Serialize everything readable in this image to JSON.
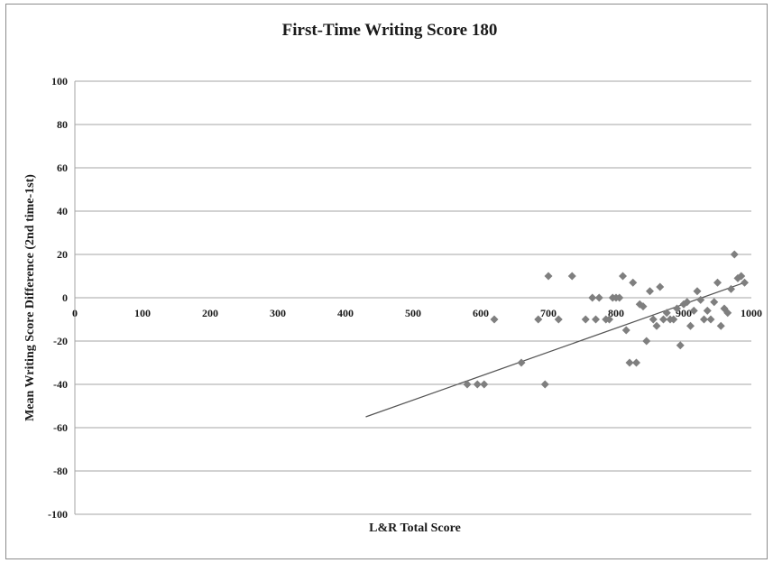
{
  "chart_data": {
    "type": "scatter",
    "title": "First-Time Writing Score 180",
    "xlabel": "L&R Total Score",
    "ylabel": "Mean Writing Score Difference (2nd time-1st)",
    "xlim": [
      0,
      1000
    ],
    "ylim": [
      -100,
      100
    ],
    "xticks": [
      0,
      100,
      200,
      300,
      400,
      500,
      600,
      700,
      800,
      900,
      1000
    ],
    "yticks": [
      -100,
      -80,
      -60,
      -40,
      -20,
      0,
      20,
      40,
      60,
      80,
      100
    ],
    "xtick_labels": [
      "0",
      "100",
      "200",
      "300",
      "400",
      "500",
      "600",
      "700",
      "800",
      "900",
      "1000"
    ],
    "ytick_labels": [
      "-100",
      "-80",
      "-60",
      "-40",
      "-20",
      "0",
      "20",
      "40",
      "60",
      "80",
      "100"
    ],
    "grid": "horizontal",
    "legend": "none",
    "series": [
      {
        "marker": "diamond",
        "color": "#7f7f7f",
        "points": [
          [
            580,
            -40
          ],
          [
            595,
            -40
          ],
          [
            605,
            -40
          ],
          [
            620,
            -10
          ],
          [
            660,
            -30
          ],
          [
            685,
            -10
          ],
          [
            695,
            -40
          ],
          [
            700,
            10
          ],
          [
            715,
            -10
          ],
          [
            735,
            10
          ],
          [
            755,
            -10
          ],
          [
            765,
            0
          ],
          [
            770,
            -10
          ],
          [
            775,
            0
          ],
          [
            785,
            -10
          ],
          [
            790,
            -10
          ],
          [
            795,
            0
          ],
          [
            800,
            0
          ],
          [
            805,
            0
          ],
          [
            810,
            10
          ],
          [
            815,
            -15
          ],
          [
            820,
            -30
          ],
          [
            825,
            7
          ],
          [
            830,
            -30
          ],
          [
            835,
            -3
          ],
          [
            840,
            -4
          ],
          [
            845,
            -20
          ],
          [
            850,
            3
          ],
          [
            855,
            -10
          ],
          [
            860,
            -13
          ],
          [
            865,
            5
          ],
          [
            870,
            -10
          ],
          [
            875,
            -7
          ],
          [
            880,
            -10
          ],
          [
            885,
            -10
          ],
          [
            890,
            -5
          ],
          [
            895,
            -22
          ],
          [
            900,
            -3
          ],
          [
            905,
            -2
          ],
          [
            910,
            -13
          ],
          [
            915,
            -6
          ],
          [
            920,
            3
          ],
          [
            925,
            -1
          ],
          [
            930,
            -10
          ],
          [
            935,
            -6
          ],
          [
            940,
            -10
          ],
          [
            945,
            -2
          ],
          [
            950,
            7
          ],
          [
            955,
            -13
          ],
          [
            960,
            -5
          ],
          [
            965,
            -7
          ],
          [
            970,
            4
          ],
          [
            975,
            20
          ],
          [
            980,
            9
          ],
          [
            985,
            10
          ],
          [
            990,
            7
          ]
        ]
      }
    ],
    "trendline": {
      "x": [
        430,
        990
      ],
      "y": [
        -55,
        7
      ],
      "color": "#555555"
    }
  }
}
